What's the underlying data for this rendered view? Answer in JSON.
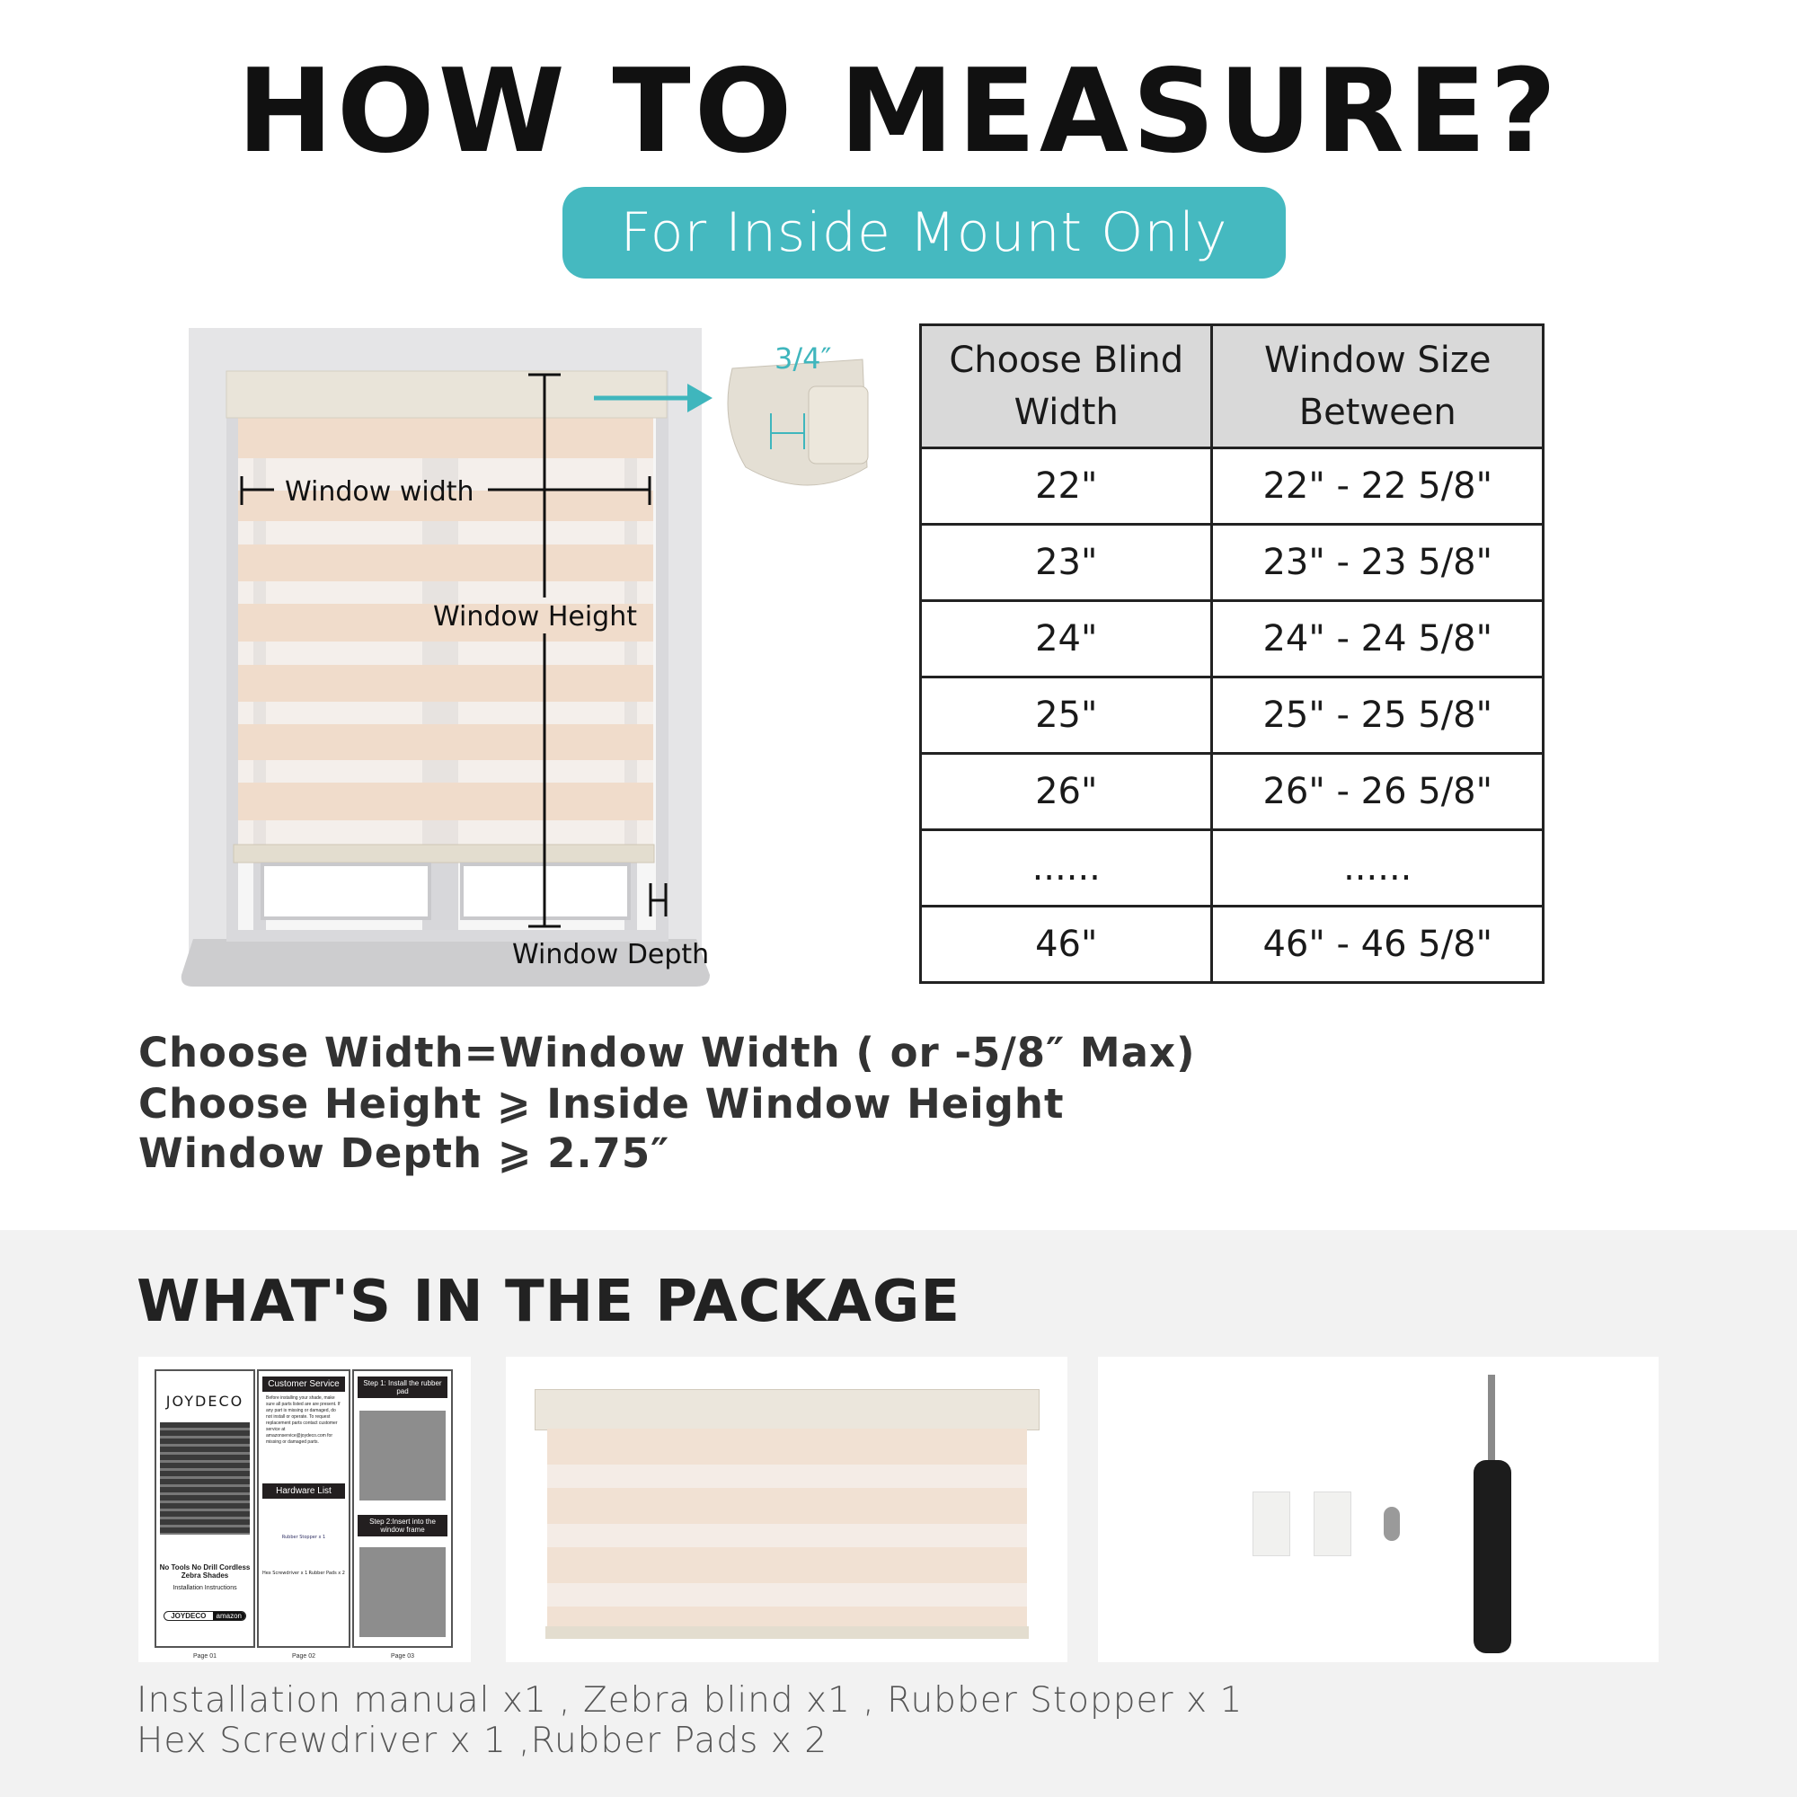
{
  "header": {
    "title": "HOW TO MEASURE?",
    "subtitle": "For Inside Mount Only"
  },
  "diagram": {
    "width_label": "Window width",
    "height_label": "Window Height",
    "depth_label": "Window Depth",
    "detail_label": "3/4″"
  },
  "size_table": {
    "headers": [
      "Choose Blind Width",
      "Window Size Between"
    ],
    "rows": [
      [
        "22\"",
        "22\" - 22 5/8\""
      ],
      [
        "23\"",
        "23\" - 23 5/8\""
      ],
      [
        "24\"",
        "24\" - 24 5/8\""
      ],
      [
        "25\"",
        "25\" - 25 5/8\""
      ],
      [
        "26\"",
        "26\" - 26 5/8\""
      ],
      [
        "......",
        "......"
      ],
      [
        "46\"",
        "46\" - 46 5/8\""
      ]
    ]
  },
  "rules": [
    "Choose Width=Window Width ( or -5/8″ Max)",
    "Choose Height ⩾ Inside Window Height",
    "Window Depth ⩾ 2.75″"
  ],
  "package": {
    "title": "WHAT'S IN THE PACKAGE",
    "manual": {
      "brand": "JOYDECO",
      "cover_title": "No Tools No Drill Cordless Zebra Shades",
      "cover_sub": "Installation Instructions",
      "service_title": "Customer Service",
      "service_text": "Before installing your shade, make sure all parts listed are are present. If any part is missing or damaged, do not install or operate. To request replacement parts contact customer service at amazonservice@joydeco.com for missing or damaged parts.",
      "hardware_title": "Hardware List",
      "hw_stopper": "Rubber Stopper x 1",
      "hw_driver": "Hex Screwdriver x 1",
      "hw_pads": "Rubber Pads x 2",
      "step1": "Step 1: Install the rubber pad",
      "step2": "Step 2:Insert into the window frame",
      "badge_brand": "JOYDECO",
      "badge_store": "amazon",
      "pages": [
        "Page 01",
        "Page 02",
        "Page 03"
      ]
    },
    "caption_lines": [
      "Installation manual x1 , Zebra blind x1 , Rubber Stopper x 1",
      "Hex Screwdriver x 1 ,Rubber Pads x 2"
    ]
  },
  "colors": {
    "accent": "#45b9c0",
    "fabric": "#f0dccb",
    "section_bg": "#f2f2f2"
  }
}
